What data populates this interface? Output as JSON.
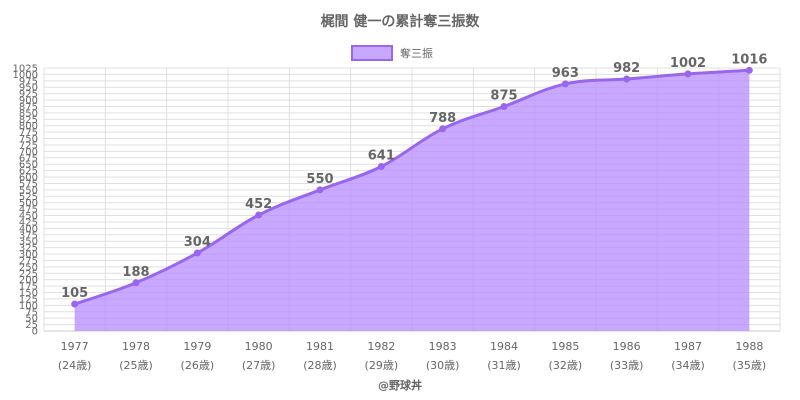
{
  "title": "梶間 健一の累計奪三振数",
  "footer": "@野球丼",
  "colors": {
    "line": "#9966ee",
    "fill": "#b388ff",
    "legend_fill": "#c8a8ff",
    "grid": "#e0e0e0",
    "text": "#666666"
  },
  "chart_data": {
    "type": "area",
    "title": "梶間 健一の累計奪三振数",
    "legend_position": "top",
    "grid": true,
    "x": [
      "1977",
      "1978",
      "1979",
      "1980",
      "1981",
      "1982",
      "1983",
      "1984",
      "1985",
      "1986",
      "1987",
      "1988"
    ],
    "x_sublabels": [
      "(24歳)",
      "(25歳)",
      "(26歳)",
      "(27歳)",
      "(28歳)",
      "(29歳)",
      "(30歳)",
      "(31歳)",
      "(32歳)",
      "(33歳)",
      "(34歳)",
      "(35歳)"
    ],
    "series": [
      {
        "name": "奪三振",
        "values": [
          105,
          188,
          304,
          452,
          550,
          641,
          788,
          875,
          963,
          982,
          1002,
          1016
        ]
      }
    ],
    "ylim": [
      0,
      1025
    ],
    "ytick_step": 25
  }
}
